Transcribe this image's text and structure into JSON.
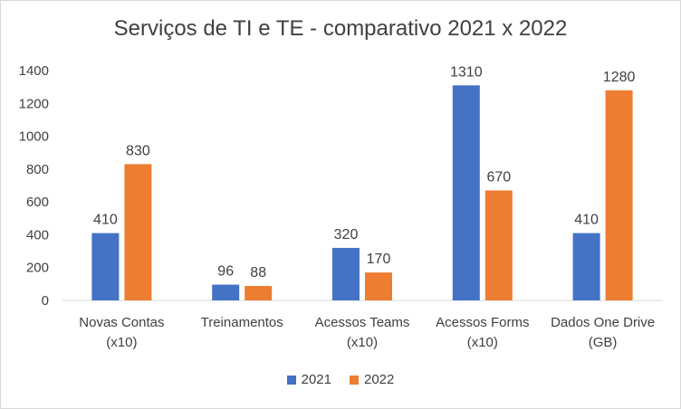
{
  "chart_data": {
    "type": "bar",
    "title": "Serviços de TI e TE - comparativo 2021 x 2022",
    "categories": [
      [
        "Novas Contas",
        "(x10)"
      ],
      [
        "Treinamentos"
      ],
      [
        "Acessos Teams",
        "(x10)"
      ],
      [
        "Acessos Forms",
        "(x10)"
      ],
      [
        "Dados One Drive",
        "(GB)"
      ]
    ],
    "series": [
      {
        "name": "2021",
        "color": "#4472C4",
        "values": [
          410,
          96,
          320,
          1310,
          410
        ]
      },
      {
        "name": "2022",
        "color": "#ED7D31",
        "values": [
          830,
          88,
          170,
          670,
          1280
        ]
      }
    ],
    "ylim": [
      0,
      1400
    ],
    "yticks": [
      0,
      200,
      400,
      600,
      800,
      1000,
      1200,
      1400
    ],
    "grid": false,
    "legend_position": "bottom"
  }
}
